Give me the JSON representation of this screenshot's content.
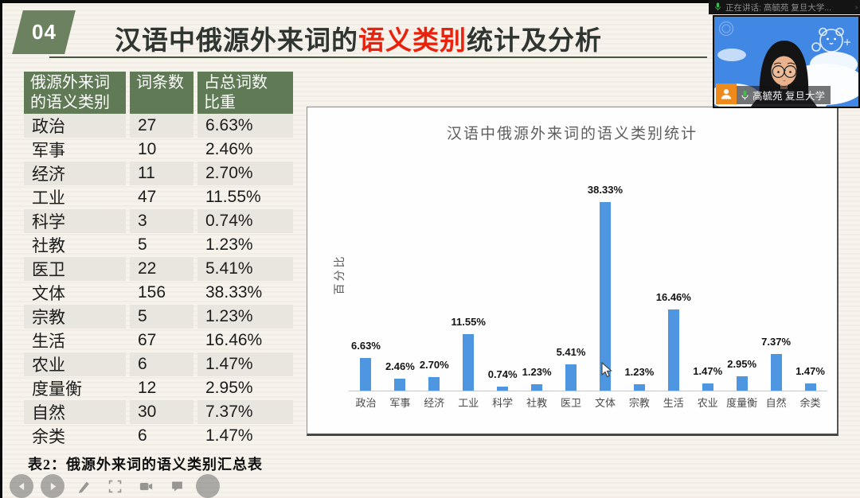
{
  "meeting": {
    "speaking_banner": {
      "label": "正在讲话: 高毓苑 复旦大学..."
    },
    "participant": {
      "name": "高毓苑 复旦大学"
    },
    "toolbar": [
      {
        "name": "prev-slide",
        "icon": "arrow-left"
      },
      {
        "name": "next-slide",
        "icon": "arrow-right"
      },
      {
        "name": "annotate-pen",
        "icon": "pen"
      },
      {
        "name": "select-frame",
        "icon": "frame"
      },
      {
        "name": "camera",
        "icon": "camera"
      },
      {
        "name": "chat",
        "icon": "chat"
      },
      {
        "name": "more",
        "icon": "dot"
      }
    ]
  },
  "slide": {
    "section_number": "04",
    "title_prefix": "汉语中俄源外来词的",
    "title_highlight": "语义类别",
    "title_suffix": "统计及分析",
    "table": {
      "headers": [
        [
          "俄源外来词",
          "的语义类别"
        ],
        [
          "词条数"
        ],
        [
          "占总词数",
          "比重"
        ]
      ],
      "rows": [
        [
          "政治",
          "27",
          "6.63%"
        ],
        [
          "军事",
          "10",
          "2.46%"
        ],
        [
          "经济",
          "11",
          "2.70%"
        ],
        [
          "工业",
          "47",
          "11.55%"
        ],
        [
          "科学",
          "3",
          "0.74%"
        ],
        [
          "社教",
          "5",
          "1.23%"
        ],
        [
          "医卫",
          "22",
          "5.41%"
        ],
        [
          "文体",
          "156",
          "38.33%"
        ],
        [
          "宗教",
          "5",
          "1.23%"
        ],
        [
          "生活",
          "67",
          "16.46%"
        ],
        [
          "农业",
          "6",
          "1.47%"
        ],
        [
          "度量衡",
          "12",
          "2.95%"
        ],
        [
          "自然",
          "30",
          "7.37%"
        ],
        [
          "余类",
          "6",
          "1.47%"
        ]
      ],
      "caption": "表2：俄源外来词的语义类别汇总表"
    }
  },
  "chart_data": {
    "type": "bar",
    "title": "汉语中俄源外来词的语义类别统计",
    "xlabel": "",
    "ylabel": "百分比",
    "categories": [
      "政治",
      "军事",
      "经济",
      "工业",
      "科学",
      "社教",
      "医卫",
      "文体",
      "宗教",
      "生活",
      "农业",
      "度量衡",
      "自然",
      "余类"
    ],
    "values": [
      6.63,
      2.46,
      2.7,
      11.55,
      0.74,
      1.23,
      5.41,
      38.33,
      1.23,
      16.46,
      1.47,
      2.95,
      7.37,
      1.47
    ],
    "labels": [
      "6.63%",
      "2.46%",
      "2.70%",
      "11.55%",
      "0.74%",
      "1.23%",
      "5.41%",
      "38.33%",
      "1.23%",
      "16.46%",
      "1.47%",
      "2.95%",
      "7.37%",
      "1.47%"
    ],
    "ylim": [
      0,
      40
    ],
    "grid": false,
    "legend": false,
    "bar_color": "#4e96e0"
  },
  "colors": {
    "accent_green": "#6b8160",
    "table_header_green": "#5f7a55",
    "highlight_red": "#e8220d",
    "bar_blue": "#4e96e0",
    "name_badge_orange": "#ee8a1c"
  }
}
